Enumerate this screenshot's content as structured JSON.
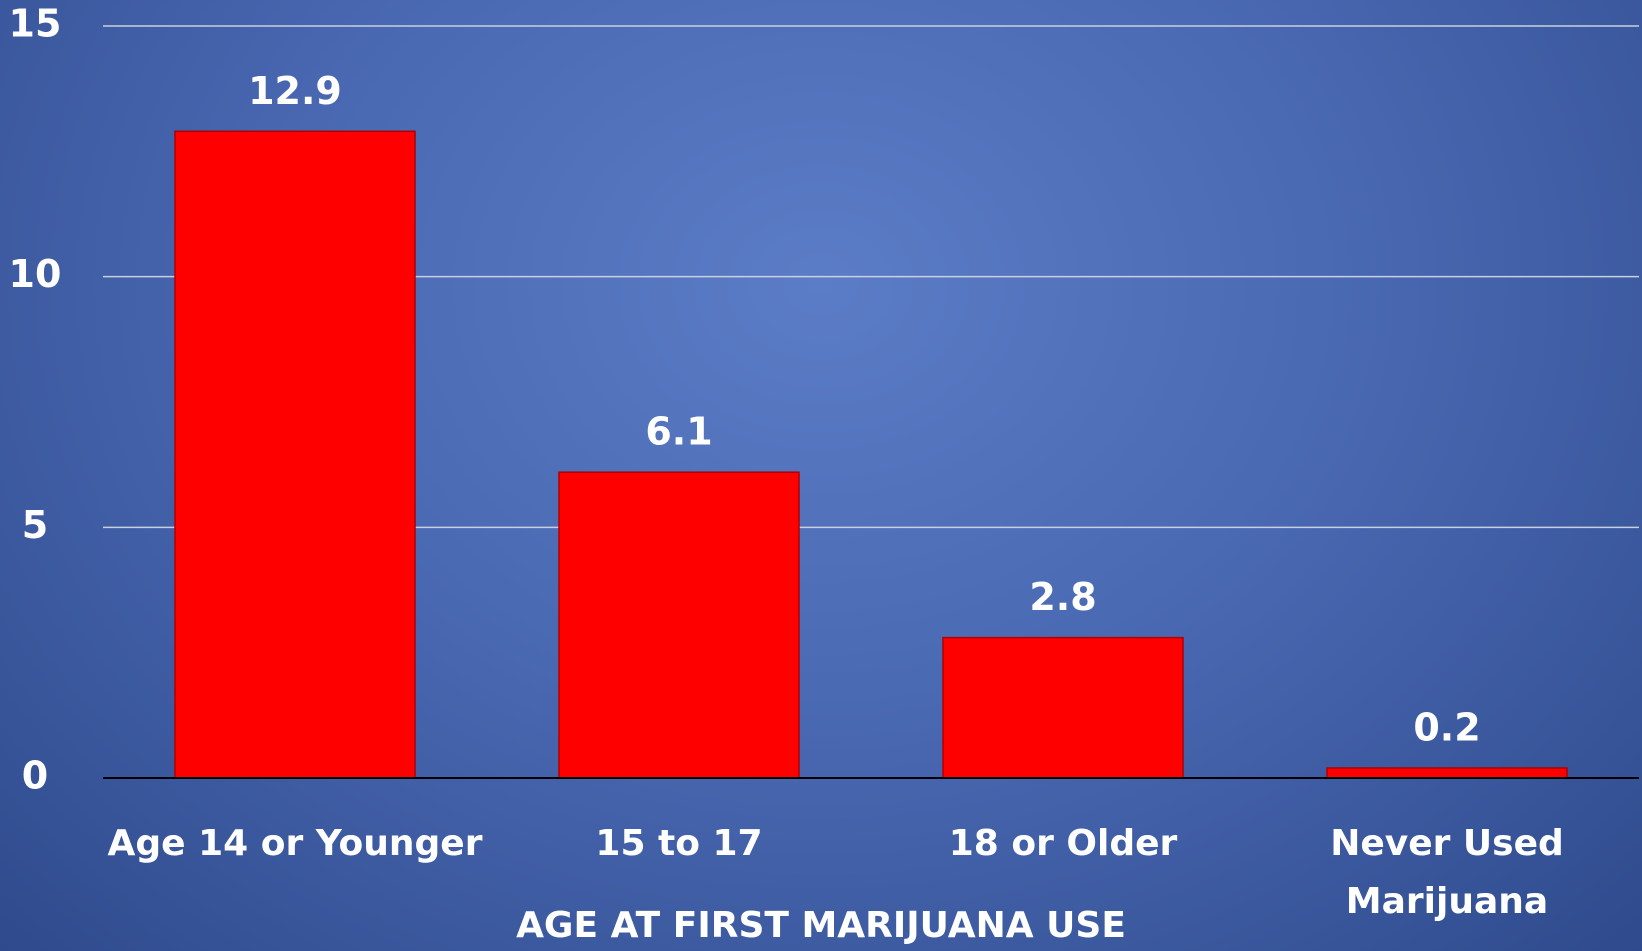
{
  "chart_data": {
    "type": "bar",
    "x_label": "AGE AT FIRST MARIJUANA USE",
    "categories": [
      "Age 14 or Younger",
      "15 to 17",
      "18 or Older",
      "Never Used Marijuana"
    ],
    "values": [
      12.9,
      6.1,
      2.8,
      0.2
    ],
    "color": "#ff0000",
    "ylim": [
      0,
      15
    ],
    "yticks": [
      0,
      5,
      10,
      15
    ],
    "grid": true
  }
}
